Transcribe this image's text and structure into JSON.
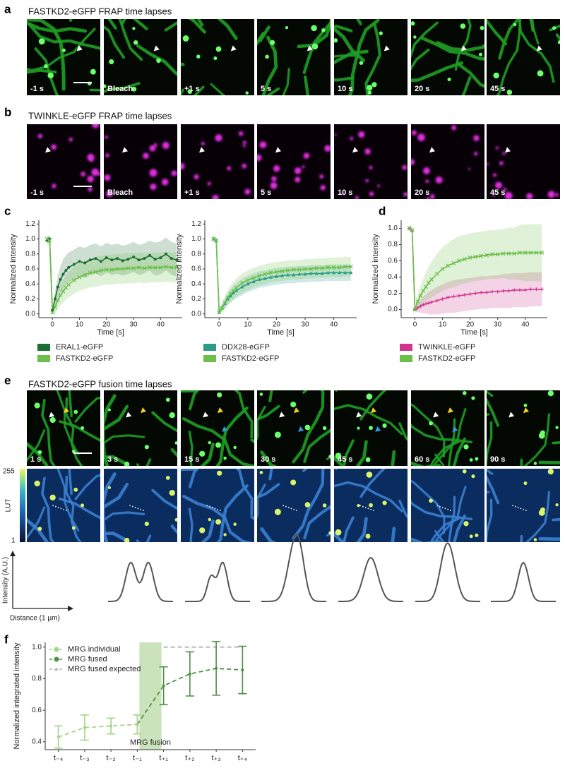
{
  "panels": [
    {
      "label": "a",
      "title": "FASTKD2-eGFP FRAP time lapses",
      "frames": [
        "-1 s",
        "Bleach",
        "+1 s",
        "5 s",
        "10 s",
        "20 s",
        "45 s"
      ]
    },
    {
      "label": "b",
      "title": "TWINKLE-eGFP FRAP time lapses",
      "frames": [
        "-1 s",
        "Bleach",
        "+1 s",
        "5 s",
        "10 s",
        "20 s",
        "45 s"
      ]
    },
    {
      "label": "c"
    },
    {
      "label": "d"
    },
    {
      "label": "e",
      "title": "FASTKD2-eGFP  fusion time lapses",
      "frames": [
        "1 s",
        "3 s",
        "15 s",
        "30 s",
        "45 s",
        "60 s",
        "90 s"
      ],
      "lut": {
        "label": "LUT",
        "max": 255,
        "min": 1
      },
      "profile": {
        "ylabel": "Intensity (A.U.)",
        "xlabel": "Distance (1 μm)"
      }
    },
    {
      "label": "f"
    }
  ],
  "chart_data": [
    {
      "type": "line",
      "xlabel": "Time [s]",
      "ylabel": "Normalized intensity",
      "legend": "below",
      "xlim": [
        -5,
        48
      ],
      "ylim": [
        -0.05,
        1.25
      ],
      "xticks": [
        0,
        10,
        20,
        30,
        40
      ],
      "yticks": [
        {
          "value": 0,
          "label": "0.0"
        },
        0.2,
        0.4,
        0.6,
        0.8,
        {
          "value": 1,
          "label": "1.0"
        },
        1.2
      ],
      "x": [
        -2,
        -1,
        0,
        1,
        2,
        3,
        4,
        5,
        6,
        8,
        10,
        12,
        14,
        16,
        18,
        20,
        22,
        24,
        26,
        28,
        30,
        32,
        34,
        36,
        38,
        40,
        42,
        44,
        46
      ],
      "series": [
        {
          "name": "ERAL1-eGFP",
          "color": "#1b6e34",
          "marker": "dot",
          "values": [
            0.98,
            1.0,
            0.05,
            0.2,
            0.36,
            0.46,
            0.53,
            0.58,
            0.62,
            0.66,
            0.7,
            0.68,
            0.72,
            0.74,
            0.7,
            0.75,
            0.72,
            0.74,
            0.71,
            0.73,
            0.76,
            0.72,
            0.74,
            0.78,
            0.73,
            0.75,
            0.8,
            0.74,
            0.72
          ],
          "sd": [
            0.05,
            0.05,
            0.03,
            0.1,
            0.15,
            0.18,
            0.2,
            0.2,
            0.2,
            0.2,
            0.2,
            0.2,
            0.2,
            0.2,
            0.2,
            0.2,
            0.2,
            0.2,
            0.2,
            0.2,
            0.2,
            0.2,
            0.2,
            0.2,
            0.22,
            0.22,
            0.22,
            0.22,
            0.22
          ]
        },
        {
          "name": "FASTKD2-eGFP",
          "color": "#6cc04a",
          "marker": "x",
          "values": [
            1.0,
            0.98,
            0.02,
            0.09,
            0.18,
            0.25,
            0.3,
            0.35,
            0.39,
            0.45,
            0.49,
            0.52,
            0.55,
            0.56,
            0.58,
            0.59,
            0.59,
            0.6,
            0.6,
            0.61,
            0.61,
            0.62,
            0.61,
            0.62,
            0.62,
            0.62,
            0.63,
            0.62,
            0.62
          ],
          "sd": [
            0.05,
            0.05,
            0.02,
            0.1,
            0.12,
            0.14,
            0.15,
            0.16,
            0.17,
            0.18,
            0.18,
            0.19,
            0.19,
            0.2,
            0.2,
            0.2,
            0.2,
            0.2,
            0.2,
            0.2,
            0.2,
            0.2,
            0.2,
            0.2,
            0.2,
            0.2,
            0.2,
            0.2,
            0.2
          ]
        }
      ]
    },
    {
      "type": "line",
      "xlabel": "Time [s]",
      "ylabel": "Normalized intensity",
      "legend": "below",
      "xlim": [
        -5,
        48
      ],
      "ylim": [
        -0.05,
        1.25
      ],
      "xticks": [
        0,
        10,
        20,
        30,
        40
      ],
      "yticks": [
        {
          "value": 0,
          "label": "0.0"
        },
        0.2,
        0.4,
        0.6,
        0.8,
        {
          "value": 1,
          "label": "1.0"
        },
        1.2
      ],
      "x": [
        -2,
        -1,
        0,
        1,
        2,
        3,
        4,
        5,
        6,
        8,
        10,
        12,
        14,
        16,
        18,
        20,
        22,
        24,
        26,
        28,
        30,
        32,
        34,
        36,
        38,
        40,
        42,
        44,
        46
      ],
      "series": [
        {
          "name": "DDX28-eGFP",
          "color": "#2a9c88",
          "marker": "triangle",
          "values": [
            1.0,
            0.98,
            0.02,
            0.08,
            0.14,
            0.2,
            0.24,
            0.28,
            0.31,
            0.36,
            0.4,
            0.43,
            0.46,
            0.47,
            0.49,
            0.5,
            0.51,
            0.52,
            0.52,
            0.53,
            0.53,
            0.54,
            0.54,
            0.54,
            0.55,
            0.55,
            0.55,
            0.55,
            0.55
          ],
          "sd": [
            0.04,
            0.04,
            0.02,
            0.05,
            0.07,
            0.08,
            0.09,
            0.1,
            0.1,
            0.11,
            0.11,
            0.11,
            0.11,
            0.11,
            0.11,
            0.11,
            0.11,
            0.11,
            0.11,
            0.11,
            0.11,
            0.11,
            0.11,
            0.11,
            0.11,
            0.11,
            0.11,
            0.11,
            0.11
          ]
        },
        {
          "name": "FASTKD2-eGFP",
          "color": "#6cc04a",
          "marker": "x",
          "values": [
            1.0,
            0.98,
            0.02,
            0.08,
            0.15,
            0.22,
            0.27,
            0.31,
            0.35,
            0.41,
            0.45,
            0.48,
            0.51,
            0.53,
            0.55,
            0.56,
            0.57,
            0.58,
            0.59,
            0.59,
            0.6,
            0.6,
            0.61,
            0.61,
            0.62,
            0.62,
            0.62,
            0.63,
            0.63
          ],
          "sd": [
            0.04,
            0.04,
            0.02,
            0.06,
            0.08,
            0.1,
            0.11,
            0.12,
            0.12,
            0.13,
            0.13,
            0.13,
            0.13,
            0.13,
            0.13,
            0.13,
            0.13,
            0.13,
            0.13,
            0.13,
            0.13,
            0.13,
            0.13,
            0.13,
            0.13,
            0.13,
            0.13,
            0.13,
            0.13
          ]
        }
      ]
    },
    {
      "type": "line",
      "xlabel": "Time [s]",
      "ylabel": "Normalized intensity",
      "legend": "below",
      "xlim": [
        -5,
        48
      ],
      "ylim": [
        -0.1,
        1.1
      ],
      "xticks": [
        0,
        10,
        20,
        30,
        40
      ],
      "yticks": [
        {
          "value": 0,
          "label": "0.0"
        },
        0.2,
        0.4,
        0.6,
        0.8,
        {
          "value": 1,
          "label": "1.0"
        }
      ],
      "x": [
        -2,
        -1,
        0,
        1,
        2,
        3,
        4,
        5,
        6,
        8,
        10,
        12,
        14,
        16,
        18,
        20,
        22,
        24,
        26,
        28,
        30,
        32,
        34,
        36,
        38,
        40,
        42,
        44,
        46
      ],
      "series": [
        {
          "name": "TWINKLE-eGFP",
          "color": "#d0368f",
          "marker": "plus",
          "values": [
            1.0,
            0.97,
            0.0,
            0.02,
            0.04,
            0.06,
            0.07,
            0.08,
            0.09,
            0.11,
            0.13,
            0.15,
            0.16,
            0.17,
            0.18,
            0.19,
            0.2,
            0.21,
            0.21,
            0.22,
            0.22,
            0.23,
            0.23,
            0.24,
            0.24,
            0.24,
            0.25,
            0.25,
            0.25
          ],
          "sd": [
            0.03,
            0.03,
            0.02,
            0.05,
            0.08,
            0.1,
            0.12,
            0.14,
            0.15,
            0.17,
            0.18,
            0.19,
            0.2,
            0.2,
            0.2,
            0.2,
            0.2,
            0.2,
            0.2,
            0.2,
            0.2,
            0.21,
            0.21,
            0.21,
            0.21,
            0.21,
            0.21,
            0.21,
            0.21
          ]
        },
        {
          "name": "FASTKD2-eGFP",
          "color": "#6cc04a",
          "marker": "x",
          "values": [
            1.0,
            0.98,
            0.0,
            0.1,
            0.17,
            0.23,
            0.28,
            0.33,
            0.37,
            0.44,
            0.5,
            0.54,
            0.57,
            0.6,
            0.62,
            0.64,
            0.65,
            0.66,
            0.67,
            0.68,
            0.68,
            0.69,
            0.69,
            0.69,
            0.7,
            0.7,
            0.7,
            0.7,
            0.7
          ],
          "sd": [
            0.04,
            0.04,
            0.02,
            0.08,
            0.12,
            0.15,
            0.18,
            0.2,
            0.22,
            0.25,
            0.27,
            0.28,
            0.3,
            0.3,
            0.3,
            0.3,
            0.3,
            0.3,
            0.3,
            0.3,
            0.3,
            0.3,
            0.32,
            0.32,
            0.34,
            0.35,
            0.35,
            0.35,
            0.35
          ]
        }
      ]
    },
    {
      "type": "errorline",
      "ylabel": "Normalized integrated intensity",
      "legend": "upper left",
      "annotation": "MRG fusion",
      "categories": [
        "t₋₄",
        "t₋₃",
        "t₋₂",
        "t₋₁",
        "t₊₁",
        "t₊₂",
        "t₊₃",
        "t₊₄"
      ],
      "ylim": [
        0.35,
        1.03
      ],
      "yticks": [
        0.4,
        0.6,
        0.8,
        {
          "value": 1,
          "label": "1.0"
        }
      ],
      "series": [
        {
          "name": "MRG individual",
          "color": "#a3d485",
          "marker": "dot",
          "values": [
            0.43,
            0.49,
            0.5,
            0.51,
            null,
            null,
            null,
            null
          ],
          "errors": [
            0.07,
            0.08,
            0.05,
            0.06,
            null,
            null,
            null,
            null
          ]
        },
        {
          "name": "MRG fused",
          "color": "#4f8f45",
          "marker": "dot",
          "values": [
            null,
            null,
            null,
            0.51,
            0.755,
            0.83,
            0.865,
            0.855
          ],
          "errors": [
            null,
            null,
            null,
            null,
            0.12,
            0.14,
            0.17,
            0.15
          ]
        },
        {
          "name": "MRG fused expected",
          "color": "#b5b5b5",
          "marker": "triangle",
          "values": [
            null,
            null,
            null,
            null,
            1,
            1,
            1,
            1
          ]
        }
      ]
    }
  ]
}
